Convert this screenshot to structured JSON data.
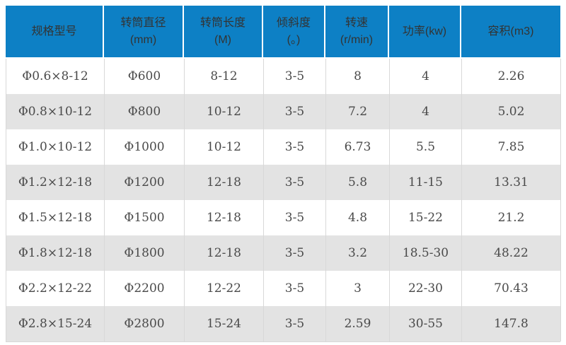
{
  "colors": {
    "header_bg": "#0d80c5",
    "header_text": "#333333",
    "row_bg": "#ffffff",
    "row_alt_bg": "#e3e3e3",
    "cell_border": "#d8d8d8",
    "body_text": "#4a4a4a"
  },
  "layout": {
    "column_widths": "139px 113px 112px 88px 90px 102px 140px"
  },
  "table": {
    "headers": [
      {
        "name": "spec-model",
        "line1": "规格型号",
        "line2": ""
      },
      {
        "name": "drum-diameter",
        "line1": "转筒直径",
        "line2": "(mm)"
      },
      {
        "name": "drum-length",
        "line1": "转筒长度",
        "line2": "(M)"
      },
      {
        "name": "inclination",
        "line1": "倾斜度",
        "line2": "(。)"
      },
      {
        "name": "rotation-speed",
        "line1": "转速",
        "line2": "(r/min)"
      },
      {
        "name": "power",
        "line1": "功率(kw)",
        "line2": ""
      },
      {
        "name": "volume",
        "line1": "容积(m3)",
        "line2": ""
      }
    ],
    "rows": [
      [
        "Φ0.6×8-12",
        "Φ600",
        "8-12",
        "3-5",
        "8",
        "4",
        "2.26"
      ],
      [
        "Φ0.8×10-12",
        "Φ800",
        "10-12",
        "3-5",
        "7.2",
        "4",
        "5.02"
      ],
      [
        "Φ1.0×10-12",
        "Φ1000",
        "10-12",
        "3-5",
        "6.73",
        "5.5",
        "7.85"
      ],
      [
        "Φ1.2×12-18",
        "Φ1200",
        "12-18",
        "3-5",
        "5.8",
        "11-15",
        "13.31"
      ],
      [
        "Φ1.5×12-18",
        "Φ1500",
        "12-18",
        "3-5",
        "4.8",
        "15-22",
        "21.2"
      ],
      [
        "Φ1.8×12-18",
        "Φ1800",
        "12-18",
        "3-5",
        "3.2",
        "18.5-30",
        "48.22"
      ],
      [
        "Φ2.2×12-22",
        "Φ2200",
        "12-22",
        "3-5",
        "3",
        "22-30",
        "70.43"
      ],
      [
        "Φ2.8×15-24",
        "Φ2800",
        "15-24",
        "3-5",
        "2.59",
        "30-55",
        "147.8"
      ]
    ]
  },
  "chart_data": {
    "type": "table",
    "title": "",
    "columns": [
      "规格型号",
      "转筒直径 (mm)",
      "转筒长度 (M)",
      "倾斜度 (。)",
      "转速 (r/min)",
      "功率(kw)",
      "容积(m3)"
    ],
    "rows": [
      [
        "Φ0.6×8-12",
        "Φ600",
        "8-12",
        "3-5",
        "8",
        "4",
        "2.26"
      ],
      [
        "Φ0.8×10-12",
        "Φ800",
        "10-12",
        "3-5",
        "7.2",
        "4",
        "5.02"
      ],
      [
        "Φ1.0×10-12",
        "Φ1000",
        "10-12",
        "3-5",
        "6.73",
        "5.5",
        "7.85"
      ],
      [
        "Φ1.2×12-18",
        "Φ1200",
        "12-18",
        "3-5",
        "5.8",
        "11-15",
        "13.31"
      ],
      [
        "Φ1.5×12-18",
        "Φ1500",
        "12-18",
        "3-5",
        "4.8",
        "15-22",
        "21.2"
      ],
      [
        "Φ1.8×12-18",
        "Φ1800",
        "12-18",
        "3-5",
        "3.2",
        "18.5-30",
        "48.22"
      ],
      [
        "Φ2.2×12-22",
        "Φ2200",
        "12-22",
        "3-5",
        "3",
        "22-30",
        "70.43"
      ],
      [
        "Φ2.8×15-24",
        "Φ2800",
        "15-24",
        "3-5",
        "2.59",
        "30-55",
        "147.8"
      ]
    ],
    "header_style": {
      "background": "#0d80c5",
      "text_color": "#333333"
    },
    "zebra_striping": true
  }
}
